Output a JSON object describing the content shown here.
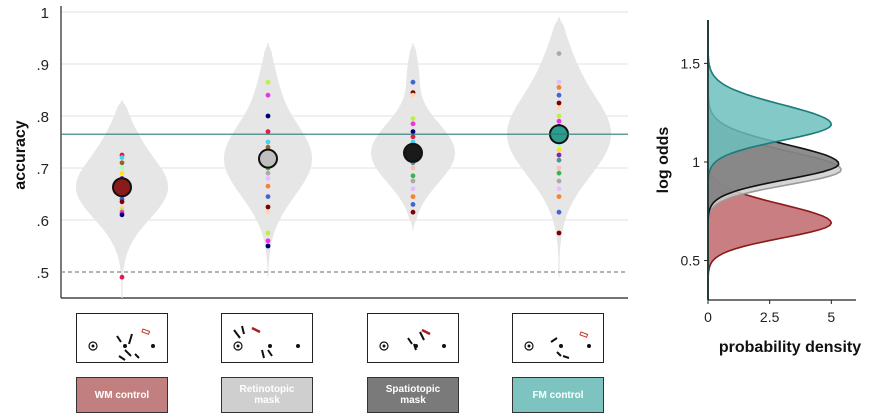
{
  "chart_data": [
    {
      "type": "scatter",
      "subtype": "violin-dot",
      "ylabel": "accuracy",
      "ylim": [
        0.45,
        1.0
      ],
      "yticks": [
        0.5,
        0.6,
        0.7,
        0.8,
        0.9,
        1.0
      ],
      "ytick_labels": [
        ".5",
        ".6",
        ".7",
        ".8",
        ".9",
        "1"
      ],
      "grid": true,
      "reference_lines": [
        {
          "kind": "dashed",
          "value": 0.5,
          "color": "#888888"
        },
        {
          "kind": "solid",
          "value": 0.765,
          "color": "#2a7d78"
        }
      ],
      "conditions": [
        {
          "label": "WM control",
          "mean": 0.663,
          "mean_color": "#8b1a1a",
          "label_color": "#c17f7f",
          "violin_range": [
            0.45,
            0.83
          ],
          "points": [
            0.725,
            0.72,
            0.71,
            0.7,
            0.69,
            0.68,
            0.675,
            0.665,
            0.66,
            0.655,
            0.65,
            0.645,
            0.64,
            0.635,
            0.625,
            0.62,
            0.615,
            0.61,
            0.49
          ]
        },
        {
          "label": "Retinotopic mask",
          "mean": 0.718,
          "mean_color": "#bfbfbf",
          "label_color": "#cfcfcf",
          "violin_range": [
            0.49,
            0.94
          ],
          "points": [
            0.865,
            0.84,
            0.8,
            0.77,
            0.75,
            0.74,
            0.73,
            0.725,
            0.72,
            0.715,
            0.71,
            0.7,
            0.69,
            0.68,
            0.665,
            0.645,
            0.625,
            0.615,
            0.575,
            0.56,
            0.55
          ]
        },
        {
          "label": "Spatiotopic mask",
          "mean": 0.729,
          "mean_color": "#1a1a1a",
          "label_color": "#7a7a7a",
          "violin_range": [
            0.58,
            0.94
          ],
          "points": [
            0.865,
            0.845,
            0.84,
            0.795,
            0.785,
            0.77,
            0.76,
            0.75,
            0.74,
            0.735,
            0.725,
            0.72,
            0.71,
            0.7,
            0.685,
            0.675,
            0.66,
            0.645,
            0.63,
            0.615
          ]
        },
        {
          "label": "FM control",
          "mean": 0.765,
          "mean_color": "#2a9d8f",
          "label_color": "#7dc4c0",
          "violin_range": [
            0.49,
            0.99
          ],
          "points": [
            0.92,
            0.865,
            0.855,
            0.84,
            0.825,
            0.815,
            0.8,
            0.79,
            0.78,
            0.77,
            0.76,
            0.755,
            0.745,
            0.735,
            0.725,
            0.715,
            0.7,
            0.69,
            0.675,
            0.66,
            0.645,
            0.615,
            0.575
          ]
        }
      ],
      "point_colors": [
        "#e6194b",
        "#f58231",
        "#ffe119",
        "#bfef45",
        "#3cb44b",
        "#42d4f4",
        "#4363d8",
        "#911eb4",
        "#f032e6",
        "#a9a9a9",
        "#9a6324",
        "#800000",
        "#469990",
        "#000075",
        "#e6beff",
        "#aaffc3",
        "#ffd8b1",
        "#fabebe"
      ]
    },
    {
      "type": "area",
      "subtype": "density",
      "orientation": "horizontal",
      "xlabel": "probability density",
      "ylabel": "log odds",
      "xlim": [
        0,
        6
      ],
      "ylim": [
        0.3,
        1.72
      ],
      "xticks": [
        0,
        2.5,
        5
      ],
      "xtick_labels": [
        "0",
        "2.5",
        "5"
      ],
      "yticks": [
        0.5,
        1.0,
        1.5
      ],
      "ytick_labels": [
        "0.5",
        "1",
        "1.5"
      ],
      "series": [
        {
          "color": "#8b1a1a",
          "fill": "#c0676b",
          "mean": 0.69,
          "sd": 0.075,
          "peak": 5.0
        },
        {
          "color": "#9a9a9a",
          "fill": "#cfcfcf",
          "mean": 0.96,
          "sd": 0.075,
          "peak": 5.4
        },
        {
          "color": "#111111",
          "fill": "#7a7a7a",
          "mean": 0.99,
          "sd": 0.078,
          "peak": 5.3
        },
        {
          "color": "#1c7c7a",
          "fill": "#6cc0bd",
          "mean": 1.19,
          "sd": 0.08,
          "peak": 5.0
        }
      ]
    }
  ],
  "icons": [
    "fixation-dot-icon",
    "target-dot-icon",
    "line-segments-icon",
    "red-bar-icon"
  ]
}
